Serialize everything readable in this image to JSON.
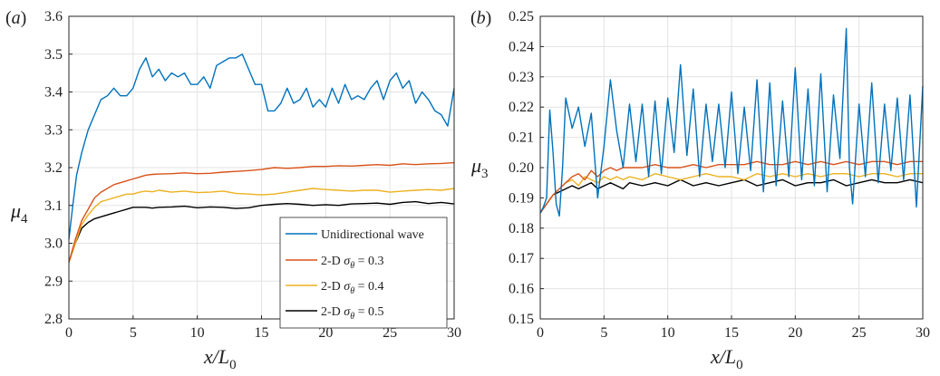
{
  "panels": [
    {
      "label": "(",
      "letter": "a",
      "close": ")"
    },
    {
      "label": "(",
      "letter": "b",
      "close": ")"
    }
  ],
  "colors": {
    "blue": "#0072BD",
    "red": "#D95319",
    "yellow": "#EDB120",
    "black": "#000000",
    "grid": "#e3e3e3",
    "axis": "#262626"
  },
  "chart_data": [
    {
      "type": "line",
      "xlabel": {
        "main": "x/L",
        "sub": "0"
      },
      "ylabel": {
        "main": "μ",
        "sub": "4"
      },
      "xlim": [
        0,
        30
      ],
      "ylim": [
        2.8,
        3.6
      ],
      "xticks": [
        "0",
        "5",
        "10",
        "15",
        "20",
        "25",
        "30"
      ],
      "yticks": [
        "2.8",
        "2.9",
        "3.0",
        "3.1",
        "3.2",
        "3.3",
        "3.4",
        "3.5",
        "3.6"
      ],
      "grid": true,
      "legend_position": "bottom-right",
      "series": [
        {
          "name": "Unidirectional wave",
          "color": "#0072BD",
          "x": [
            0,
            0.3,
            0.6,
            1,
            1.5,
            2,
            2.5,
            3,
            3.5,
            4,
            4.5,
            5,
            5.5,
            6,
            6.5,
            7,
            7.5,
            8,
            8.5,
            9,
            9.5,
            10,
            10.5,
            11,
            11.5,
            12,
            12.5,
            13,
            13.5,
            14,
            14.5,
            15,
            15.5,
            16,
            16.5,
            17,
            17.5,
            18,
            18.5,
            19,
            19.5,
            20,
            20.5,
            21,
            21.5,
            22,
            22.5,
            23,
            23.5,
            24,
            24.5,
            25,
            25.5,
            26,
            26.5,
            27,
            27.5,
            28,
            28.5,
            29,
            29.5,
            30
          ],
          "y": [
            3.01,
            3.1,
            3.18,
            3.24,
            3.3,
            3.34,
            3.38,
            3.39,
            3.41,
            3.39,
            3.39,
            3.41,
            3.46,
            3.49,
            3.44,
            3.46,
            3.43,
            3.45,
            3.44,
            3.45,
            3.42,
            3.42,
            3.44,
            3.41,
            3.47,
            3.48,
            3.49,
            3.49,
            3.5,
            3.46,
            3.42,
            3.42,
            3.35,
            3.35,
            3.37,
            3.41,
            3.37,
            3.38,
            3.41,
            3.36,
            3.38,
            3.36,
            3.41,
            3.37,
            3.42,
            3.38,
            3.39,
            3.38,
            3.41,
            3.43,
            3.38,
            3.43,
            3.45,
            3.41,
            3.43,
            3.37,
            3.4,
            3.38,
            3.35,
            3.34,
            3.31,
            3.41
          ]
        },
        {
          "name": "2-D σθ = 0.3",
          "color": "#D95319",
          "x": [
            0,
            0.5,
            1,
            1.5,
            2,
            2.5,
            3,
            3.5,
            4,
            4.5,
            5,
            5.5,
            6,
            6.5,
            7,
            8,
            9,
            10,
            11,
            12,
            13,
            14,
            15,
            16,
            17,
            18,
            19,
            20,
            21,
            22,
            23,
            24,
            25,
            26,
            27,
            28,
            29,
            30
          ],
          "y": [
            2.95,
            3.01,
            3.06,
            3.09,
            3.12,
            3.135,
            3.145,
            3.155,
            3.16,
            3.165,
            3.17,
            3.175,
            3.18,
            3.182,
            3.183,
            3.184,
            3.186,
            3.184,
            3.185,
            3.188,
            3.19,
            3.192,
            3.195,
            3.2,
            3.198,
            3.2,
            3.203,
            3.203,
            3.205,
            3.204,
            3.206,
            3.208,
            3.206,
            3.21,
            3.208,
            3.21,
            3.211,
            3.213
          ]
        },
        {
          "name": "2-D σθ = 0.4",
          "color": "#EDB120",
          "x": [
            0,
            0.5,
            1,
            1.5,
            2,
            2.5,
            3,
            3.5,
            4,
            4.5,
            5,
            5.5,
            6,
            6.5,
            7,
            8,
            9,
            10,
            11,
            12,
            13,
            14,
            15,
            16,
            17,
            18,
            19,
            20,
            21,
            22,
            23,
            24,
            25,
            26,
            27,
            28,
            29,
            30
          ],
          "y": [
            2.95,
            3.0,
            3.05,
            3.075,
            3.095,
            3.11,
            3.115,
            3.12,
            3.125,
            3.13,
            3.13,
            3.135,
            3.138,
            3.136,
            3.14,
            3.135,
            3.138,
            3.134,
            3.135,
            3.138,
            3.132,
            3.13,
            3.128,
            3.13,
            3.135,
            3.14,
            3.145,
            3.142,
            3.14,
            3.138,
            3.14,
            3.14,
            3.135,
            3.138,
            3.14,
            3.142,
            3.14,
            3.145
          ]
        },
        {
          "name": "2-D σθ = 0.5",
          "color": "#000000",
          "x": [
            0,
            0.5,
            1,
            1.5,
            2,
            2.5,
            3,
            3.5,
            4,
            4.5,
            5,
            5.5,
            6,
            6.5,
            7,
            8,
            9,
            10,
            11,
            12,
            13,
            14,
            15,
            16,
            17,
            18,
            19,
            20,
            21,
            22,
            23,
            24,
            25,
            26,
            27,
            28,
            29,
            30
          ],
          "y": [
            2.95,
            3.0,
            3.04,
            3.055,
            3.065,
            3.07,
            3.075,
            3.08,
            3.085,
            3.09,
            3.095,
            3.095,
            3.095,
            3.093,
            3.095,
            3.096,
            3.098,
            3.094,
            3.096,
            3.095,
            3.092,
            3.094,
            3.1,
            3.103,
            3.105,
            3.103,
            3.1,
            3.102,
            3.1,
            3.104,
            3.105,
            3.106,
            3.103,
            3.108,
            3.11,
            3.105,
            3.108,
            3.104
          ]
        }
      ]
    },
    {
      "type": "line",
      "xlabel": {
        "main": "x/L",
        "sub": "0"
      },
      "ylabel": {
        "main": "μ",
        "sub": "3"
      },
      "xlim": [
        0,
        30
      ],
      "ylim": [
        0.15,
        0.25
      ],
      "xticks": [
        "0",
        "5",
        "10",
        "15",
        "20",
        "25",
        "30"
      ],
      "yticks": [
        "0.15",
        "0.16",
        "0.17",
        "0.18",
        "0.19",
        "0.20",
        "0.21",
        "0.22",
        "0.23",
        "0.24",
        "0.25"
      ],
      "grid": true,
      "series": [
        {
          "name": "Unidirectional wave",
          "color": "#0072BD",
          "x": [
            0,
            0.25,
            0.5,
            0.75,
            1,
            1.25,
            1.5,
            1.75,
            2,
            2.5,
            3,
            3.5,
            4,
            4.5,
            5,
            5.5,
            6,
            6.5,
            7,
            7.5,
            8,
            8.5,
            9,
            9.5,
            10,
            10.5,
            11,
            11.5,
            12,
            12.5,
            13,
            13.5,
            14,
            14.5,
            15,
            15.5,
            16,
            16.5,
            17,
            17.5,
            18,
            18.5,
            19,
            19.5,
            20,
            20.5,
            21,
            21.5,
            22,
            22.5,
            23,
            23.5,
            24,
            24.25,
            24.5,
            25,
            25.5,
            26,
            26.5,
            27,
            27.5,
            28,
            28.5,
            29,
            29.5,
            30
          ],
          "y": [
            0.185,
            0.187,
            0.19,
            0.219,
            0.205,
            0.188,
            0.184,
            0.2,
            0.223,
            0.213,
            0.22,
            0.207,
            0.218,
            0.19,
            0.207,
            0.229,
            0.212,
            0.2,
            0.221,
            0.202,
            0.221,
            0.197,
            0.222,
            0.198,
            0.223,
            0.205,
            0.234,
            0.204,
            0.226,
            0.197,
            0.221,
            0.202,
            0.221,
            0.2,
            0.225,
            0.198,
            0.22,
            0.199,
            0.229,
            0.192,
            0.228,
            0.194,
            0.222,
            0.197,
            0.233,
            0.196,
            0.226,
            0.194,
            0.231,
            0.192,
            0.224,
            0.203,
            0.246,
            0.2,
            0.188,
            0.221,
            0.197,
            0.228,
            0.195,
            0.221,
            0.199,
            0.223,
            0.196,
            0.224,
            0.187,
            0.227
          ]
        },
        {
          "name": "2-D σθ = 0.3",
          "color": "#D95319",
          "x": [
            0,
            0.5,
            1,
            1.5,
            2,
            2.5,
            3,
            3.5,
            4,
            4.5,
            5,
            5.5,
            6,
            6.5,
            7,
            8,
            9,
            10,
            11,
            12,
            13,
            14,
            15,
            16,
            17,
            18,
            19,
            20,
            21,
            22,
            23,
            24,
            25,
            26,
            27,
            28,
            29,
            30
          ],
          "y": [
            0.185,
            0.188,
            0.191,
            0.193,
            0.195,
            0.197,
            0.198,
            0.196,
            0.199,
            0.197,
            0.199,
            0.2,
            0.199,
            0.2,
            0.2,
            0.2,
            0.201,
            0.2,
            0.2,
            0.201,
            0.2,
            0.201,
            0.201,
            0.201,
            0.202,
            0.201,
            0.201,
            0.202,
            0.201,
            0.202,
            0.201,
            0.202,
            0.201,
            0.202,
            0.202,
            0.201,
            0.202,
            0.202
          ]
        },
        {
          "name": "2-D σθ = 0.4",
          "color": "#EDB120",
          "x": [
            0,
            0.5,
            1,
            1.5,
            2,
            2.5,
            3,
            3.5,
            4,
            4.5,
            5,
            5.5,
            6,
            6.5,
            7,
            8,
            9,
            10,
            11,
            12,
            13,
            14,
            15,
            16,
            17,
            18,
            19,
            20,
            21,
            22,
            23,
            24,
            25,
            26,
            27,
            28,
            29,
            30
          ],
          "y": [
            0.185,
            0.188,
            0.191,
            0.193,
            0.195,
            0.196,
            0.194,
            0.197,
            0.196,
            0.195,
            0.197,
            0.196,
            0.197,
            0.196,
            0.197,
            0.196,
            0.198,
            0.197,
            0.196,
            0.197,
            0.198,
            0.197,
            0.197,
            0.196,
            0.198,
            0.197,
            0.198,
            0.197,
            0.198,
            0.197,
            0.198,
            0.198,
            0.197,
            0.198,
            0.198,
            0.197,
            0.198,
            0.198
          ]
        },
        {
          "name": "2-D σθ = 0.5",
          "color": "#000000",
          "x": [
            0,
            0.5,
            1,
            1.5,
            2,
            2.5,
            3,
            3.5,
            4,
            4.5,
            5,
            5.5,
            6,
            6.5,
            7,
            8,
            9,
            10,
            11,
            12,
            13,
            14,
            15,
            16,
            17,
            18,
            19,
            20,
            21,
            22,
            23,
            24,
            25,
            26,
            27,
            28,
            29,
            30
          ],
          "y": [
            0.185,
            0.188,
            0.191,
            0.192,
            0.193,
            0.194,
            0.193,
            0.194,
            0.195,
            0.193,
            0.194,
            0.195,
            0.194,
            0.193,
            0.195,
            0.194,
            0.195,
            0.194,
            0.196,
            0.194,
            0.195,
            0.194,
            0.195,
            0.196,
            0.194,
            0.195,
            0.196,
            0.194,
            0.195,
            0.195,
            0.196,
            0.194,
            0.195,
            0.196,
            0.195,
            0.195,
            0.196,
            0.195
          ]
        }
      ]
    }
  ],
  "legend": {
    "entries": [
      {
        "prefix": "Unidirectional wave",
        "greek": "",
        "sub": "",
        "suffix": ""
      },
      {
        "prefix": "2-D ",
        "greek": "σ",
        "sub": "θ",
        "suffix": " = 0.3"
      },
      {
        "prefix": "2-D ",
        "greek": "σ",
        "sub": "θ",
        "suffix": " = 0.4"
      },
      {
        "prefix": "2-D ",
        "greek": "σ",
        "sub": "θ",
        "suffix": " = 0.5"
      }
    ]
  }
}
